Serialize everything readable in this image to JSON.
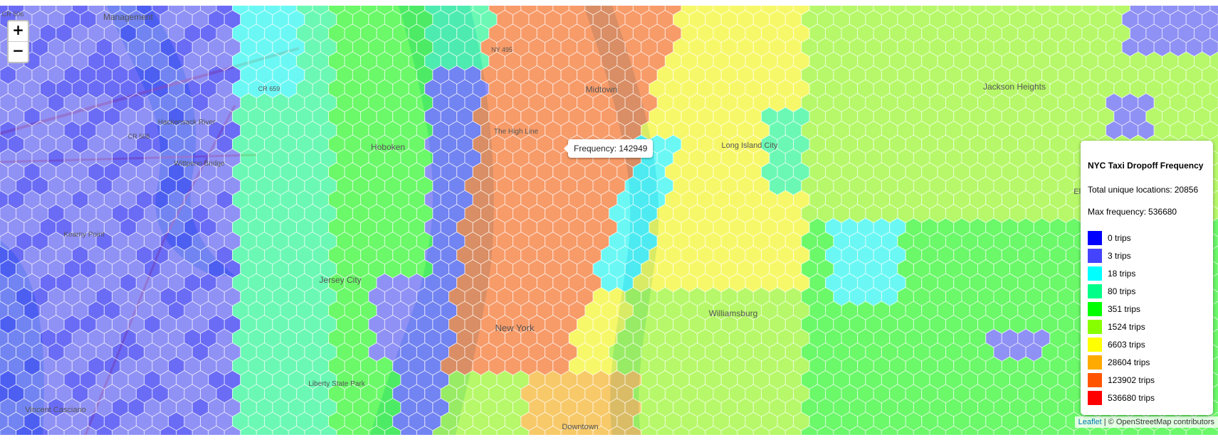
{
  "map": {
    "zoom_in_label": "+",
    "zoom_out_label": "−",
    "tooltip": {
      "label": "Frequency:",
      "value": "142949"
    },
    "place_labels": [
      {
        "id": "hoboken",
        "text": "Hoboken"
      },
      {
        "id": "jersey-city",
        "text": "Jersey City"
      },
      {
        "id": "new-york",
        "text": "New York"
      },
      {
        "id": "midtown",
        "text": "Midtown"
      },
      {
        "id": "williamsburg",
        "text": "Williamsburg"
      },
      {
        "id": "jackson-heights",
        "text": "Jackson Heights"
      },
      {
        "id": "elmhurst",
        "text": "Elmhurst"
      },
      {
        "id": "long-island-city",
        "text": "Long Island City"
      },
      {
        "id": "downtown",
        "text": "Downtown"
      },
      {
        "id": "liberty-state-park",
        "text": "Liberty State Park"
      },
      {
        "id": "kearny-point",
        "text": "Kearny Point"
      },
      {
        "id": "wittpenn-bridge",
        "text": "Wittpenn Bridge"
      },
      {
        "id": "vincent-casciano",
        "text": "Vincent Casciano"
      },
      {
        "id": "the-high-line",
        "text": "The High Line"
      },
      {
        "id": "management",
        "text": "Management"
      },
      {
        "id": "cr506",
        "text": "CR 506"
      },
      {
        "id": "cr508",
        "text": "CR 508"
      },
      {
        "id": "cr659",
        "text": "CR 659"
      },
      {
        "id": "ny495",
        "text": "NY 495"
      },
      {
        "id": "hackensack-river",
        "text": "Hackensack River"
      }
    ],
    "colors": {
      "land": "#eef0e8",
      "water": "#aad3df",
      "road": "#f3b5a0",
      "hex_stroke": "#ffffff"
    }
  },
  "legend": {
    "title": "NYC Taxi Dropoff Frequency",
    "total_label": "Total unique locations:",
    "total_value": "20856",
    "max_label": "Max frequency:",
    "max_value": "536680",
    "items": [
      {
        "label": "0 trips",
        "color": "#0000ff"
      },
      {
        "label": "3 trips",
        "color": "#4444ff"
      },
      {
        "label": "18 trips",
        "color": "#00ffff"
      },
      {
        "label": "80 trips",
        "color": "#00ff88"
      },
      {
        "label": "351 trips",
        "color": "#00ff00"
      },
      {
        "label": "1524 trips",
        "color": "#88ff00"
      },
      {
        "label": "6603 trips",
        "color": "#ffff00"
      },
      {
        "label": "28604 trips",
        "color": "#ffaa00"
      },
      {
        "label": "123902 trips",
        "color": "#ff5500"
      },
      {
        "label": "536680 trips",
        "color": "#ff0000"
      }
    ]
  },
  "attribution": {
    "leaflet": "Leaflet",
    "separator": " | © ",
    "osm": "OpenStreetMap contributors"
  }
}
